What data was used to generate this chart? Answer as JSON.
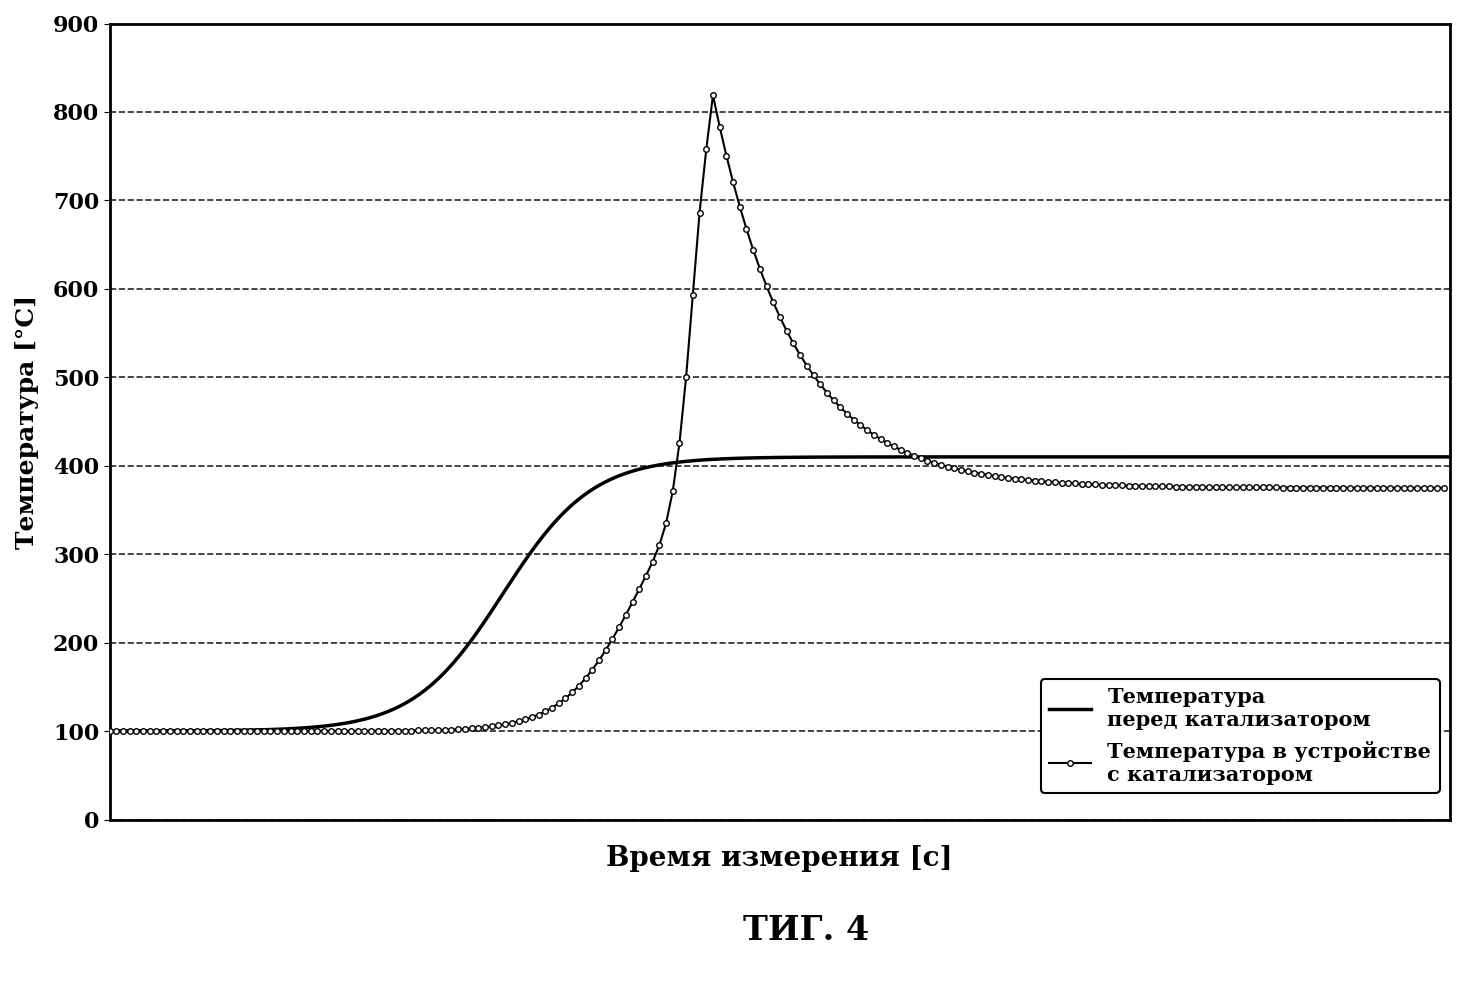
{
  "title": "ΤИГ. 4",
  "xlabel": "Время измерения [с]",
  "ylabel": "Температура [°С]",
  "ylim": [
    0,
    900
  ],
  "yticks": [
    0,
    100,
    200,
    300,
    400,
    500,
    600,
    700,
    800,
    900
  ],
  "background_color": "#ffffff",
  "legend_label_1": "Температура\nперед катализатором",
  "legend_label_2": "Температура в устройстве\nс катализатором",
  "line_color": "#000000",
  "title_fontsize": 24,
  "label_fontsize": 18,
  "tick_fontsize": 16,
  "legend_fontsize": 15
}
